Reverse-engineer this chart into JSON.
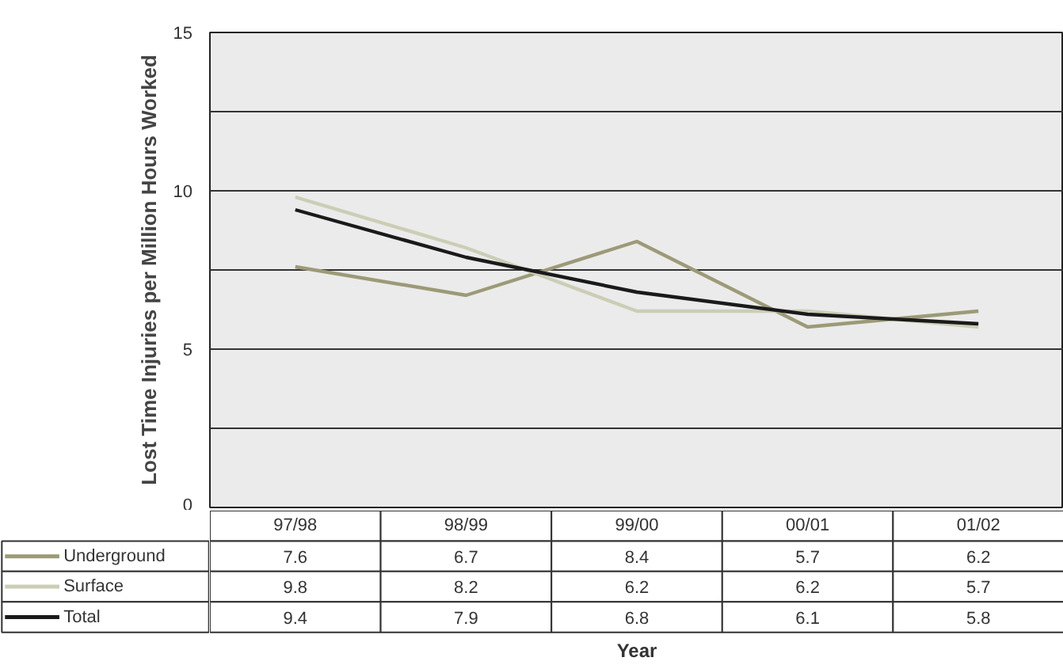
{
  "chart_data": {
    "type": "line",
    "ylabel": "Lost Time Injuries per Million Hours Worked",
    "annotations": [
      "Year"
    ],
    "categories": [
      "97/98",
      "98/99",
      "99/00",
      "00/01",
      "01/02"
    ],
    "series": [
      {
        "name": "Underground",
        "color": "#9c9a77",
        "values": [
          7.6,
          6.7,
          8.4,
          5.7,
          6.2
        ]
      },
      {
        "name": "Surface",
        "color": "#cccdb5",
        "values": [
          9.8,
          8.2,
          6.2,
          6.2,
          5.7
        ]
      },
      {
        "name": "Total",
        "color": "#1a1a1a",
        "values": [
          9.4,
          7.9,
          6.8,
          6.1,
          5.8
        ]
      }
    ],
    "ylim": [
      0,
      15
    ],
    "yticks": [
      0,
      {
        "value": 2.5,
        "label": null
      },
      5,
      {
        "value": 7.5,
        "label": null
      },
      10,
      {
        "value": 12.5,
        "label": null
      },
      15
    ],
    "grid": "y",
    "legend": "bottom left",
    "data_labels": true,
    "line_style": "solid",
    "marker": "none"
  }
}
